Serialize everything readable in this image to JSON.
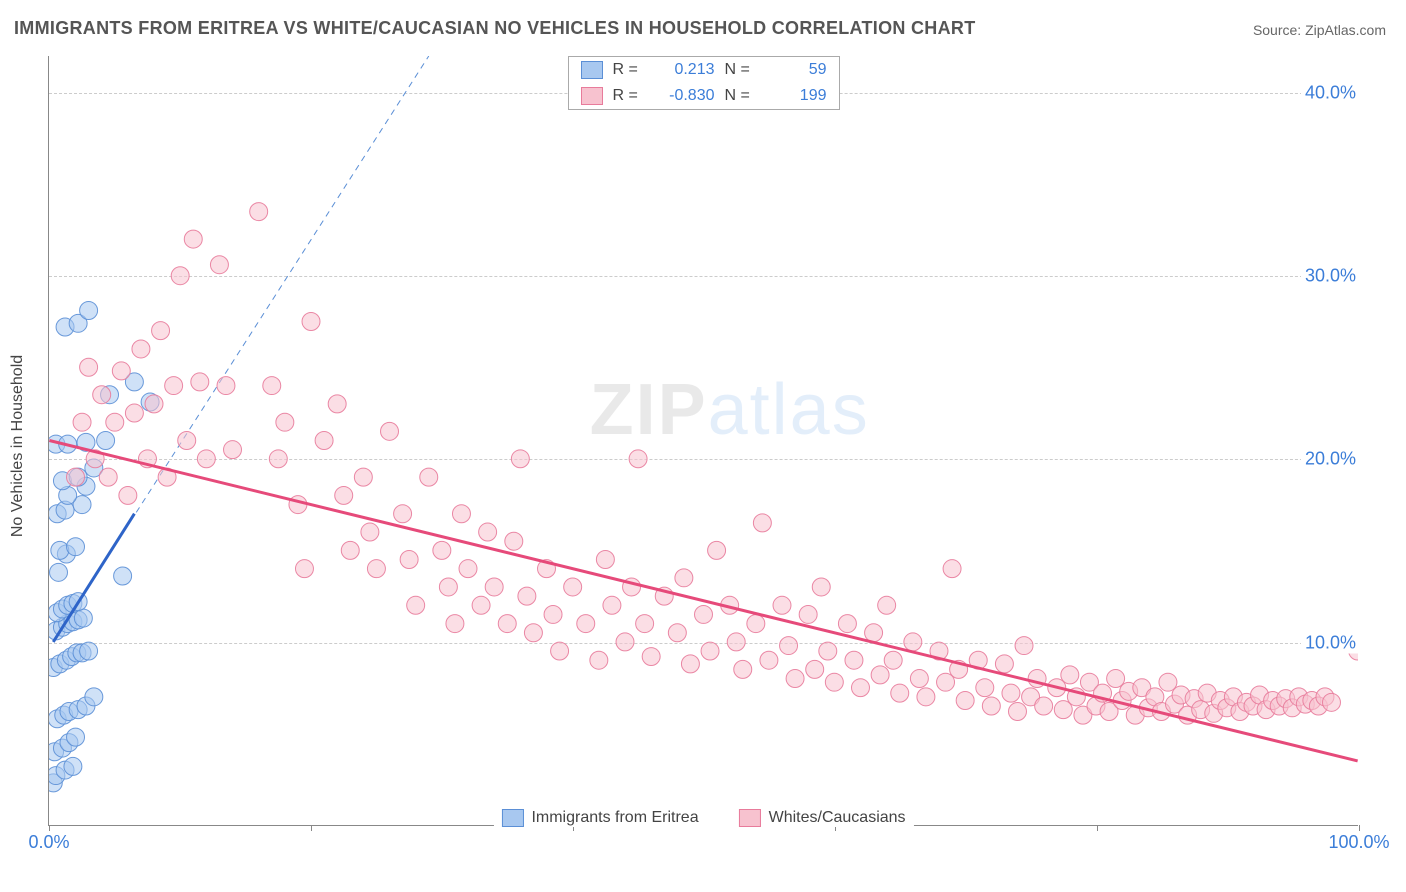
{
  "title": "IMMIGRANTS FROM ERITREA VS WHITE/CAUCASIAN NO VEHICLES IN HOUSEHOLD CORRELATION CHART",
  "source_label": "Source:",
  "source_name": "ZipAtlas.com",
  "y_axis_label": "No Vehicles in Household",
  "watermark_zip": "ZIP",
  "watermark_atlas": "atlas",
  "chart": {
    "type": "scatter",
    "xlim": [
      0,
      100
    ],
    "ylim": [
      0,
      42
    ],
    "x_ticks": [
      0,
      20,
      40,
      60,
      80,
      100
    ],
    "x_tick_labels_shown": {
      "0": "0.0%",
      "100": "100.0%"
    },
    "y_ticks": [
      10,
      20,
      30,
      40
    ],
    "y_tick_labels": [
      "10.0%",
      "20.0%",
      "30.0%",
      "40.0%"
    ],
    "grid_color": "#cccccc",
    "background_color": "#ffffff",
    "axis_color": "#888888",
    "marker_radius": 9,
    "marker_opacity": 0.55,
    "marker_stroke_opacity": 0.9,
    "series": [
      {
        "name": "Immigrants from Eritrea",
        "fill_color": "#a8c8f0",
        "stroke_color": "#5b8fd6",
        "R": 0.213,
        "N": 59,
        "trend_solid": {
          "x1": 0.3,
          "y1": 10.0,
          "x2": 6.5,
          "y2": 17.0,
          "color": "#2e64c8",
          "width": 3
        },
        "trend_dashed": {
          "x1": 0.3,
          "y1": 10.0,
          "x2": 29.0,
          "y2": 42.0,
          "color": "#5b8fd6",
          "width": 1,
          "dash": "6,5"
        },
        "points": [
          [
            0.3,
            2.3
          ],
          [
            0.5,
            2.7
          ],
          [
            1.2,
            3.0
          ],
          [
            1.8,
            3.2
          ],
          [
            0.4,
            4.0
          ],
          [
            1.0,
            4.2
          ],
          [
            1.5,
            4.5
          ],
          [
            2.0,
            4.8
          ],
          [
            0.6,
            5.8
          ],
          [
            1.1,
            6.0
          ],
          [
            1.5,
            6.2
          ],
          [
            2.2,
            6.3
          ],
          [
            2.8,
            6.5
          ],
          [
            3.4,
            7.0
          ],
          [
            0.3,
            8.6
          ],
          [
            0.8,
            8.8
          ],
          [
            1.3,
            9.0
          ],
          [
            1.7,
            9.2
          ],
          [
            2.1,
            9.4
          ],
          [
            2.5,
            9.4
          ],
          [
            3.0,
            9.5
          ],
          [
            0.5,
            10.6
          ],
          [
            1.0,
            10.8
          ],
          [
            1.4,
            11.0
          ],
          [
            1.8,
            11.1
          ],
          [
            2.2,
            11.2
          ],
          [
            2.6,
            11.3
          ],
          [
            0.6,
            11.6
          ],
          [
            1.0,
            11.8
          ],
          [
            1.4,
            12.0
          ],
          [
            1.8,
            12.1
          ],
          [
            2.2,
            12.2
          ],
          [
            5.6,
            13.6
          ],
          [
            0.7,
            13.8
          ],
          [
            1.3,
            14.8
          ],
          [
            0.8,
            15.0
          ],
          [
            2.0,
            15.2
          ],
          [
            0.6,
            17.0
          ],
          [
            1.2,
            17.2
          ],
          [
            2.5,
            17.5
          ],
          [
            1.4,
            18.0
          ],
          [
            2.8,
            18.5
          ],
          [
            1.0,
            18.8
          ],
          [
            2.2,
            19.0
          ],
          [
            3.4,
            19.5
          ],
          [
            0.5,
            20.8
          ],
          [
            1.4,
            20.8
          ],
          [
            2.8,
            20.9
          ],
          [
            4.3,
            21.0
          ],
          [
            7.7,
            23.1
          ],
          [
            4.6,
            23.5
          ],
          [
            6.5,
            24.2
          ],
          [
            1.2,
            27.2
          ],
          [
            2.2,
            27.4
          ],
          [
            3.0,
            28.1
          ]
        ]
      },
      {
        "name": "Whites/Caucasians",
        "fill_color": "#f7c2cf",
        "stroke_color": "#e87b9b",
        "R": -0.83,
        "N": 199,
        "trend_solid": {
          "x1": 0.0,
          "y1": 21.0,
          "x2": 100.0,
          "y2": 3.5,
          "color": "#e64a7a",
          "width": 3
        },
        "points": [
          [
            2.0,
            19.0
          ],
          [
            2.5,
            22.0
          ],
          [
            3.0,
            25.0
          ],
          [
            3.5,
            20.0
          ],
          [
            4.0,
            23.5
          ],
          [
            4.5,
            19.0
          ],
          [
            5.0,
            22.0
          ],
          [
            5.5,
            24.8
          ],
          [
            6.0,
            18.0
          ],
          [
            6.5,
            22.5
          ],
          [
            7.0,
            26.0
          ],
          [
            7.5,
            20.0
          ],
          [
            8.0,
            23.0
          ],
          [
            8.5,
            27.0
          ],
          [
            9.0,
            19.0
          ],
          [
            9.5,
            24.0
          ],
          [
            10.0,
            30.0
          ],
          [
            10.5,
            21.0
          ],
          [
            11.0,
            32.0
          ],
          [
            11.5,
            24.2
          ],
          [
            12.0,
            20.0
          ],
          [
            13.0,
            30.6
          ],
          [
            13.5,
            24.0
          ],
          [
            14.0,
            20.5
          ],
          [
            16.0,
            33.5
          ],
          [
            17.0,
            24.0
          ],
          [
            17.5,
            20.0
          ],
          [
            18.0,
            22.0
          ],
          [
            19.0,
            17.5
          ],
          [
            19.5,
            14.0
          ],
          [
            20.0,
            27.5
          ],
          [
            21.0,
            21.0
          ],
          [
            22.0,
            23.0
          ],
          [
            22.5,
            18.0
          ],
          [
            23.0,
            15.0
          ],
          [
            24.0,
            19.0
          ],
          [
            24.5,
            16.0
          ],
          [
            25.0,
            14.0
          ],
          [
            26.0,
            21.5
          ],
          [
            27.0,
            17.0
          ],
          [
            27.5,
            14.5
          ],
          [
            28.0,
            12.0
          ],
          [
            29.0,
            19.0
          ],
          [
            30.0,
            15.0
          ],
          [
            30.5,
            13.0
          ],
          [
            31.0,
            11.0
          ],
          [
            31.5,
            17.0
          ],
          [
            32.0,
            14.0
          ],
          [
            33.0,
            12.0
          ],
          [
            33.5,
            16.0
          ],
          [
            34.0,
            13.0
          ],
          [
            35.0,
            11.0
          ],
          [
            35.5,
            15.5
          ],
          [
            36.0,
            20.0
          ],
          [
            36.5,
            12.5
          ],
          [
            37.0,
            10.5
          ],
          [
            38.0,
            14.0
          ],
          [
            38.5,
            11.5
          ],
          [
            39.0,
            9.5
          ],
          [
            40.0,
            13.0
          ],
          [
            41.0,
            11.0
          ],
          [
            42.0,
            9.0
          ],
          [
            42.5,
            14.5
          ],
          [
            43.0,
            12.0
          ],
          [
            44.0,
            10.0
          ],
          [
            44.5,
            13.0
          ],
          [
            45.0,
            20.0
          ],
          [
            45.5,
            11.0
          ],
          [
            46.0,
            9.2
          ],
          [
            47.0,
            12.5
          ],
          [
            48.0,
            10.5
          ],
          [
            48.5,
            13.5
          ],
          [
            49.0,
            8.8
          ],
          [
            50.0,
            11.5
          ],
          [
            50.5,
            9.5
          ],
          [
            51.0,
            15.0
          ],
          [
            52.0,
            12.0
          ],
          [
            52.5,
            10.0
          ],
          [
            53.0,
            8.5
          ],
          [
            54.0,
            11.0
          ],
          [
            54.5,
            16.5
          ],
          [
            55.0,
            9.0
          ],
          [
            56.0,
            12.0
          ],
          [
            56.5,
            9.8
          ],
          [
            57.0,
            8.0
          ],
          [
            58.0,
            11.5
          ],
          [
            58.5,
            8.5
          ],
          [
            59.0,
            13.0
          ],
          [
            59.5,
            9.5
          ],
          [
            60.0,
            7.8
          ],
          [
            61.0,
            11.0
          ],
          [
            61.5,
            9.0
          ],
          [
            62.0,
            7.5
          ],
          [
            63.0,
            10.5
          ],
          [
            63.5,
            8.2
          ],
          [
            64.0,
            12.0
          ],
          [
            64.5,
            9.0
          ],
          [
            65.0,
            7.2
          ],
          [
            66.0,
            10.0
          ],
          [
            66.5,
            8.0
          ],
          [
            67.0,
            7.0
          ],
          [
            68.0,
            9.5
          ],
          [
            68.5,
            7.8
          ],
          [
            69.0,
            14.0
          ],
          [
            69.5,
            8.5
          ],
          [
            70.0,
            6.8
          ],
          [
            71.0,
            9.0
          ],
          [
            71.5,
            7.5
          ],
          [
            72.0,
            6.5
          ],
          [
            73.0,
            8.8
          ],
          [
            73.5,
            7.2
          ],
          [
            74.0,
            6.2
          ],
          [
            74.5,
            9.8
          ],
          [
            75.0,
            7.0
          ],
          [
            75.5,
            8.0
          ],
          [
            76.0,
            6.5
          ],
          [
            77.0,
            7.5
          ],
          [
            77.5,
            6.3
          ],
          [
            78.0,
            8.2
          ],
          [
            78.5,
            7.0
          ],
          [
            79.0,
            6.0
          ],
          [
            79.5,
            7.8
          ],
          [
            80.0,
            6.5
          ],
          [
            80.5,
            7.2
          ],
          [
            81.0,
            6.2
          ],
          [
            81.5,
            8.0
          ],
          [
            82.0,
            6.8
          ],
          [
            82.5,
            7.3
          ],
          [
            83.0,
            6.0
          ],
          [
            83.5,
            7.5
          ],
          [
            84.0,
            6.4
          ],
          [
            84.5,
            7.0
          ],
          [
            85.0,
            6.2
          ],
          [
            85.5,
            7.8
          ],
          [
            86.0,
            6.6
          ],
          [
            86.5,
            7.1
          ],
          [
            87.0,
            6.0
          ],
          [
            87.5,
            6.9
          ],
          [
            88.0,
            6.3
          ],
          [
            88.5,
            7.2
          ],
          [
            89.0,
            6.1
          ],
          [
            89.5,
            6.8
          ],
          [
            90.0,
            6.4
          ],
          [
            90.5,
            7.0
          ],
          [
            91.0,
            6.2
          ],
          [
            91.5,
            6.7
          ],
          [
            92.0,
            6.5
          ],
          [
            92.5,
            7.1
          ],
          [
            93.0,
            6.3
          ],
          [
            93.5,
            6.8
          ],
          [
            94.0,
            6.5
          ],
          [
            94.5,
            6.9
          ],
          [
            95.0,
            6.4
          ],
          [
            95.5,
            7.0
          ],
          [
            96.0,
            6.6
          ],
          [
            96.5,
            6.8
          ],
          [
            97.0,
            6.5
          ],
          [
            97.5,
            7.0
          ],
          [
            98.0,
            6.7
          ],
          [
            100.0,
            9.5
          ]
        ]
      }
    ]
  },
  "stats_legend": {
    "R_label": "R =",
    "N_label": "N ="
  },
  "bottom_legend_items": [
    "Immigrants from Eritrea",
    "Whites/Caucasians"
  ]
}
